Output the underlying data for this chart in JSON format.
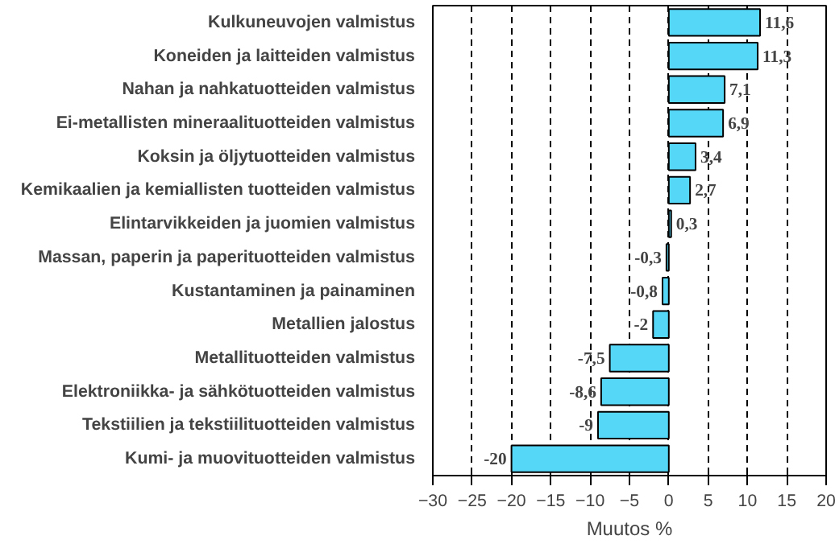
{
  "chart_data": {
    "type": "bar",
    "orientation": "horizontal",
    "xlabel": "Muutos %",
    "categories": [
      "Kulkuneuvojen valmistus",
      "Koneiden ja laitteiden valmistus",
      "Nahan ja nahkatuotteiden valmistus",
      "Ei-metallisten mineraalituotteiden valmistus",
      "Koksin ja öljytuotteiden valmistus",
      "Kemikaalien ja kemiallisten tuotteiden valmistus",
      "Elintarvikkeiden ja juomien valmistus",
      "Massan, paperin ja paperituotteiden valmistus",
      "Kustantaminen ja painaminen",
      "Metallien jalostus",
      "Metallituotteiden valmistus",
      "Elektroniikka- ja sähkötuotteiden valmistus",
      "Tekstiilien ja tekstiilituotteiden valmistus",
      "Kumi- ja muovituotteiden valmistus"
    ],
    "values": [
      11.6,
      11.3,
      7.1,
      6.9,
      3.4,
      2.7,
      0.3,
      -0.3,
      -0.8,
      -2,
      -7.5,
      -8.6,
      -9,
      -20
    ],
    "value_labels": [
      "11,6",
      "11,3",
      "7,1",
      "6,9",
      "3,4",
      "2,7",
      "0,3",
      "-0,3",
      "-0,8",
      "-2",
      "-7,5",
      "-8,6",
      "-9",
      "-20"
    ],
    "color": "#55d8f8",
    "xlim": [
      -30,
      20
    ],
    "xticks": [
      -30,
      -25,
      -20,
      -15,
      -10,
      -5,
      0,
      5,
      10,
      15,
      20
    ],
    "grid": "x",
    "line_style": "dashed"
  }
}
